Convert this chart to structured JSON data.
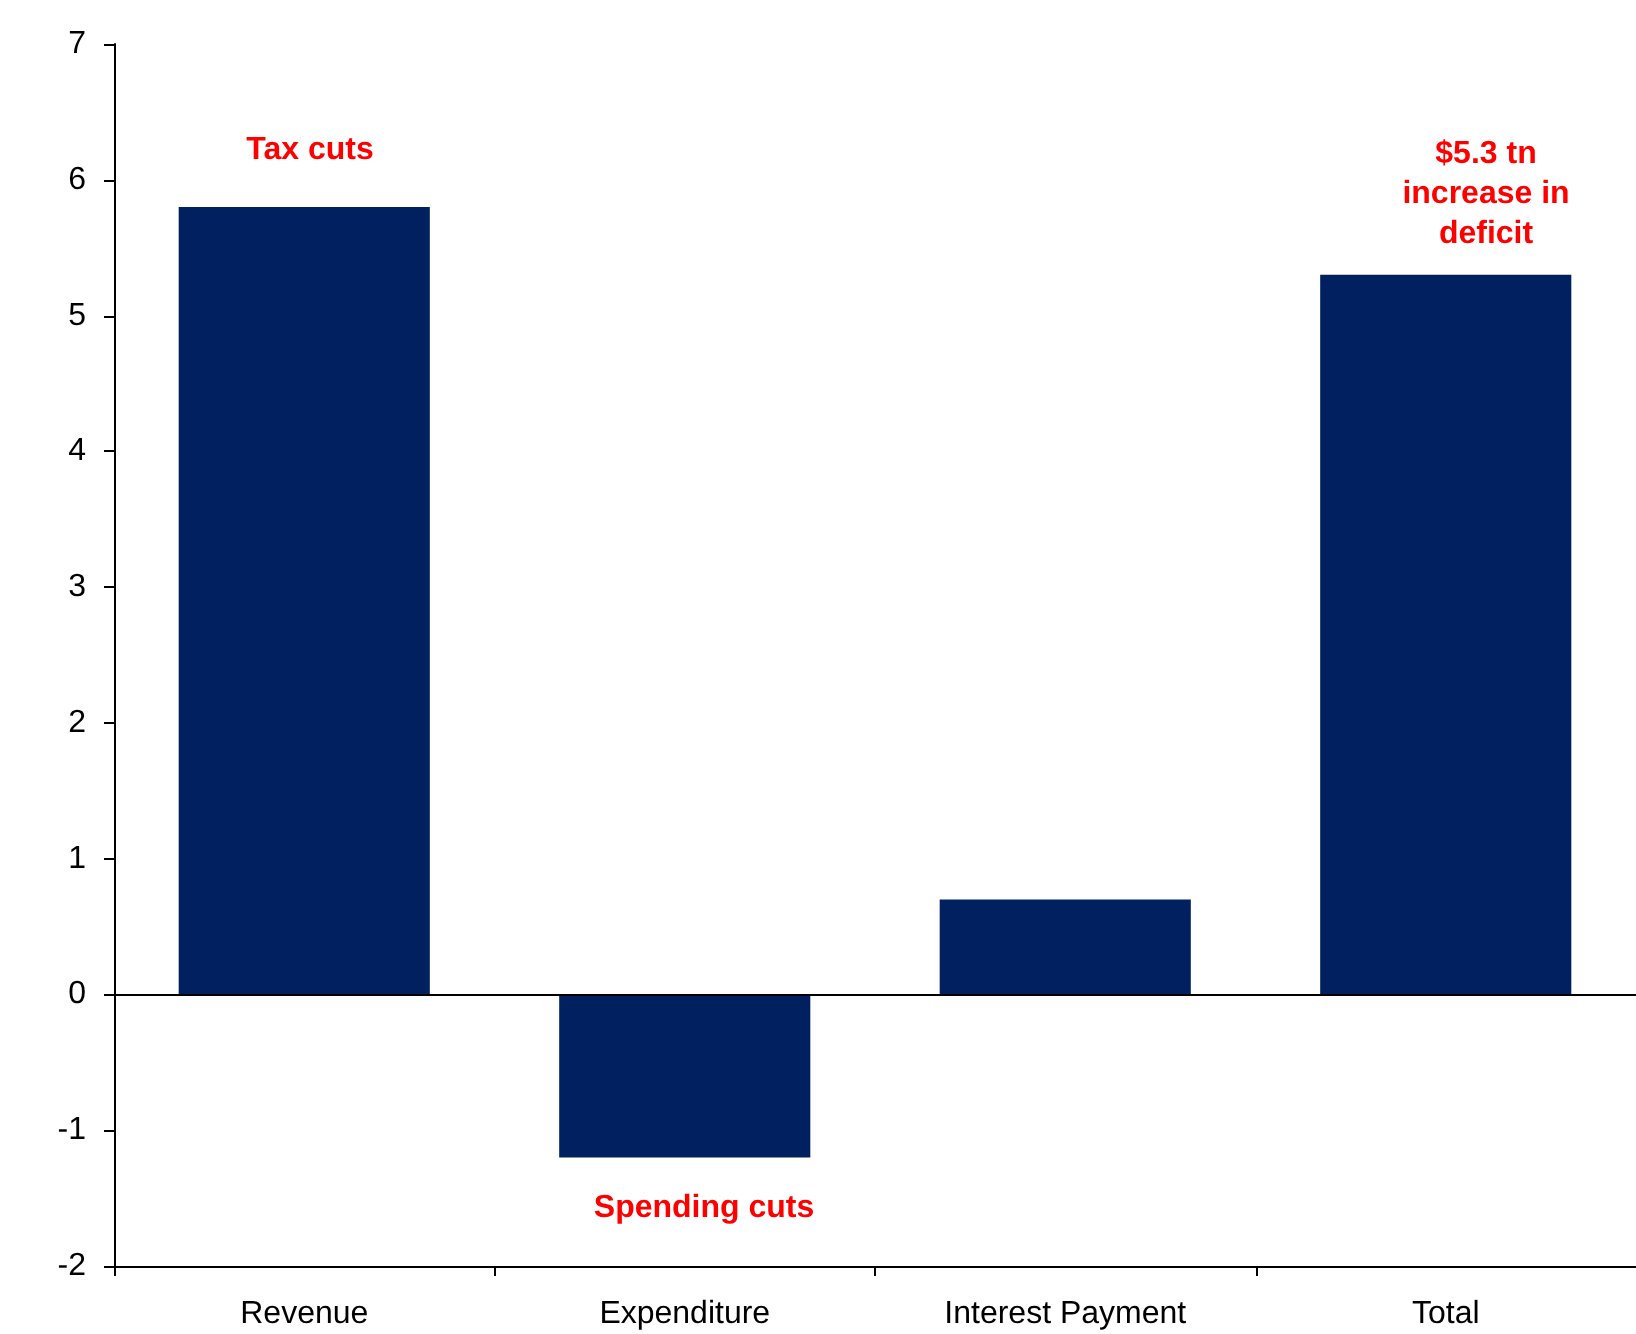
{
  "chart_data": {
    "type": "bar",
    "categories": [
      "Revenue",
      "Expenditure",
      "Interest Payment",
      "Total"
    ],
    "values": [
      5.8,
      -1.2,
      0.7,
      5.3
    ],
    "color": "#002060",
    "ylim": [
      -2,
      7
    ],
    "yticks": [
      -2,
      -1,
      0,
      1,
      2,
      3,
      4,
      5,
      6,
      7
    ],
    "grid": false,
    "ref_lines": [
      {
        "axis": "y",
        "value": 0,
        "color": "#000000"
      }
    ],
    "annotations": [
      "Tax cuts",
      "Spending cuts",
      "$5.3 tn\nincrease in\ndeficit"
    ]
  }
}
